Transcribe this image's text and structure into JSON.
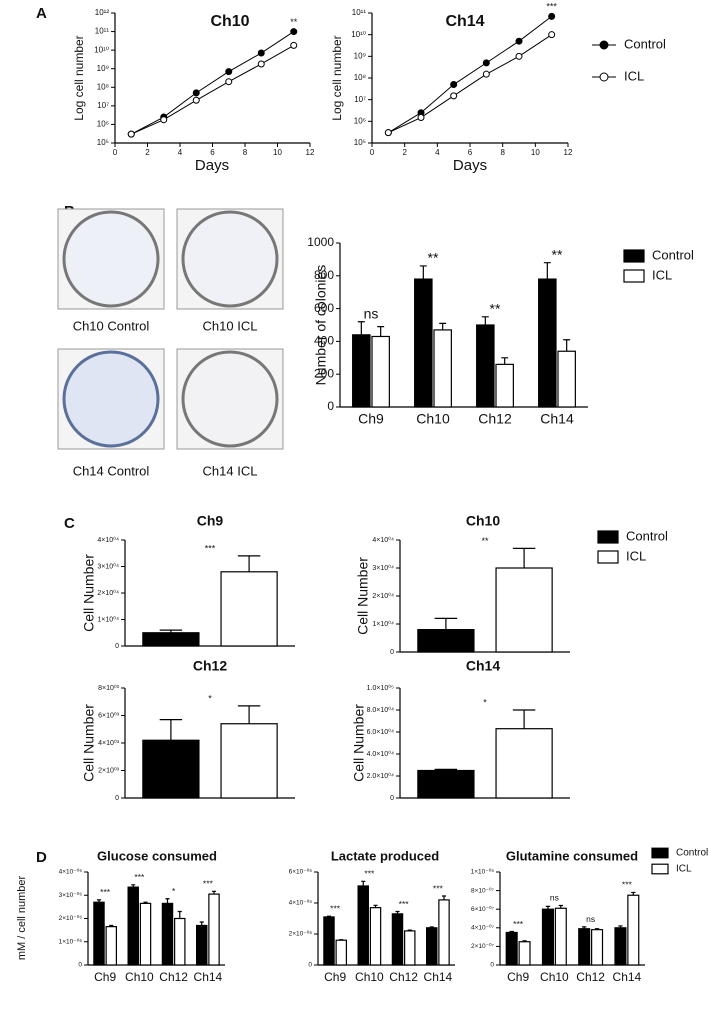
{
  "panel_labels": [
    "A",
    "B",
    "C",
    "D"
  ],
  "dish_labels": [
    "Ch10 Control",
    "Ch10 ICL",
    "Ch14 Control",
    "Ch14 ICL"
  ],
  "chart_data": [
    {
      "type": "line",
      "title": "Ch10",
      "x_label": "Days",
      "y_label": "Log cell number",
      "log_y": true,
      "x": [
        1,
        3,
        5,
        7,
        9,
        11
      ],
      "xlim": [
        0,
        12
      ],
      "xticks": [
        0,
        2,
        4,
        6,
        8,
        10,
        12
      ],
      "ylim": [
        100000,
        1000000000000
      ],
      "yticks": [
        {
          "value": 100000,
          "label": "10⁵"
        },
        {
          "value": 1000000,
          "label": "10⁶"
        },
        {
          "value": 10000000,
          "label": "10⁷"
        },
        {
          "value": 100000000,
          "label": "10⁸"
        },
        {
          "value": 1000000000,
          "label": "10⁹"
        },
        {
          "value": 10000000000,
          "label": "10¹⁰"
        },
        {
          "value": 100000000000,
          "label": "10¹¹"
        },
        {
          "value": 1000000000000,
          "label": "10¹²"
        }
      ],
      "series": [
        {
          "name": "Control",
          "color": "#000000",
          "values": [
            300000,
            2500000,
            50000000,
            700000000,
            7000000000,
            100000000000
          ]
        },
        {
          "name": "ICL",
          "color": "#ffffff",
          "values": [
            300000,
            1800000,
            20000000,
            200000000,
            1800000000,
            18000000000
          ]
        }
      ],
      "annotation": "**"
    },
    {
      "type": "line",
      "title": "Ch14",
      "x_label": "Days",
      "y_label": "Log cell number",
      "log_y": true,
      "x": [
        1,
        3,
        5,
        7,
        9,
        11
      ],
      "xlim": [
        0,
        12
      ],
      "xticks": [
        0,
        2,
        4,
        6,
        8,
        10,
        12
      ],
      "ylim": [
        100000,
        100000000000
      ],
      "yticks": [
        {
          "value": 100000,
          "label": "10⁵"
        },
        {
          "value": 1000000,
          "label": "10⁶"
        },
        {
          "value": 10000000,
          "label": "10⁷"
        },
        {
          "value": 100000000,
          "label": "10⁸"
        },
        {
          "value": 1000000000,
          "label": "10⁹"
        },
        {
          "value": 10000000000,
          "label": "10¹⁰"
        },
        {
          "value": 100000000000,
          "label": "10¹¹"
        }
      ],
      "series": [
        {
          "name": "Control",
          "color": "#000000",
          "values": [
            300000,
            2500000,
            50000000,
            500000000,
            5000000000,
            70000000000
          ]
        },
        {
          "name": "ICL",
          "color": "#ffffff",
          "values": [
            300000,
            1500000,
            15000000,
            150000000,
            1000000000,
            10000000000
          ]
        }
      ],
      "annotation": "***",
      "legend": "right"
    },
    {
      "type": "bar",
      "y_label": "Number of colonies",
      "categories": [
        "Ch9",
        "Ch10",
        "Ch12",
        "Ch14"
      ],
      "ylim": [
        0,
        1000
      ],
      "yticks": [
        0,
        200,
        400,
        600,
        800,
        1000
      ],
      "series": [
        {
          "name": "Control",
          "color": "#000000",
          "values": [
            440,
            780,
            500,
            780
          ],
          "errors": [
            80,
            80,
            50,
            100
          ]
        },
        {
          "name": "ICL",
          "color": "#ffffff",
          "values": [
            430,
            470,
            260,
            340
          ],
          "errors": [
            60,
            40,
            40,
            70
          ]
        }
      ],
      "annotations": [
        "ns",
        "**",
        "**",
        "**"
      ],
      "legend": "right"
    },
    {
      "type": "bar",
      "title": "Ch9",
      "y_label": "Cell Number",
      "ylim": [
        0,
        40000
      ],
      "yticks": [
        0,
        {
          "value": 10000,
          "label": "1×10⁰⁴"
        },
        {
          "value": 20000,
          "label": "2×10⁰⁴"
        },
        {
          "value": 30000,
          "label": "3×10⁰⁴"
        },
        {
          "value": 40000,
          "label": "4×10⁰⁴"
        }
      ],
      "series": [
        {
          "name": "Control",
          "color": "#000000",
          "values": [
            5000
          ],
          "errors": [
            1000
          ]
        },
        {
          "name": "ICL",
          "color": "#ffffff",
          "values": [
            28000
          ],
          "errors": [
            6000
          ]
        }
      ],
      "annotations": [
        "***"
      ],
      "legend": "right"
    },
    {
      "type": "bar",
      "title": "Ch10",
      "y_label": "Cell Number",
      "ylim": [
        0,
        40000
      ],
      "yticks": [
        0,
        {
          "value": 10000,
          "label": "1×10⁰⁴"
        },
        {
          "value": 20000,
          "label": "2×10⁰⁴"
        },
        {
          "value": 30000,
          "label": "3×10⁰⁴"
        },
        {
          "value": 40000,
          "label": "4×10⁰⁴"
        }
      ],
      "series": [
        {
          "name": "Control",
          "color": "#000000",
          "values": [
            8000
          ],
          "errors": [
            4000
          ]
        },
        {
          "name": "ICL",
          "color": "#ffffff",
          "values": [
            30000
          ],
          "errors": [
            7000
          ]
        }
      ],
      "annotations": [
        "**"
      ]
    },
    {
      "type": "bar",
      "title": "Ch12",
      "y_label": "Cell Number",
      "ylim": [
        0,
        8000
      ],
      "yticks": [
        0,
        {
          "value": 2000,
          "label": "2×10⁰³"
        },
        {
          "value": 4000,
          "label": "4×10⁰³"
        },
        {
          "value": 6000,
          "label": "6×10⁰³"
        },
        {
          "value": 8000,
          "label": "8×10⁰³"
        }
      ],
      "series": [
        {
          "name": "Control",
          "color": "#000000",
          "values": [
            4200
          ],
          "errors": [
            1500
          ]
        },
        {
          "name": "ICL",
          "color": "#ffffff",
          "values": [
            5400
          ],
          "errors": [
            1300
          ]
        }
      ],
      "annotations": [
        "*"
      ]
    },
    {
      "type": "bar",
      "title": "Ch14",
      "y_label": "Cell Number",
      "ylim": [
        0,
        100000
      ],
      "yticks": [
        0,
        {
          "value": 20000,
          "label": "2.0×10⁰⁴"
        },
        {
          "value": 40000,
          "label": "4.0×10⁰⁴"
        },
        {
          "value": 60000,
          "label": "6.0×10⁰⁴"
        },
        {
          "value": 80000,
          "label": "8.0×10⁰⁴"
        },
        {
          "value": 100000,
          "label": "1.0×10⁰⁵"
        }
      ],
      "series": [
        {
          "name": "Control",
          "color": "#000000",
          "values": [
            25000
          ],
          "errors": [
            1000
          ]
        },
        {
          "name": "ICL",
          "color": "#ffffff",
          "values": [
            63000
          ],
          "errors": [
            17000
          ]
        }
      ],
      "annotations": [
        "*"
      ]
    },
    {
      "type": "bar",
      "title": "Glucose consumed",
      "y_label": "mM / cell number",
      "categories": [
        "Ch9",
        "Ch10",
        "Ch12",
        "Ch14"
      ],
      "ylim": [
        0,
        4e-06
      ],
      "yticks": [
        0,
        {
          "value": 1e-06,
          "label": "1×10⁻⁰⁶"
        },
        {
          "value": 2e-06,
          "label": "2×10⁻⁰⁶"
        },
        {
          "value": 3e-06,
          "label": "3×10⁻⁰⁶"
        },
        {
          "value": 4e-06,
          "label": "4×10⁻⁰⁶"
        }
      ],
      "series": [
        {
          "name": "Control",
          "color": "#000000",
          "values": [
            2.7e-06,
            3.35e-06,
            2.65e-06,
            1.7e-06
          ],
          "errors": [
            1e-07,
            1e-07,
            2e-07,
            1.5e-07
          ]
        },
        {
          "name": "ICL",
          "color": "#ffffff",
          "values": [
            1.65e-06,
            2.65e-06,
            2e-06,
            3.05e-06
          ],
          "errors": [
            5e-08,
            5e-08,
            3e-07,
            1.2e-07
          ]
        }
      ],
      "annotations": [
        "***",
        "***",
        "*",
        "***"
      ]
    },
    {
      "type": "bar",
      "title": "Lactate produced",
      "categories": [
        "Ch9",
        "Ch10",
        "Ch12",
        "Ch14"
      ],
      "ylim": [
        0,
        6e-06
      ],
      "yticks": [
        0,
        {
          "value": 2e-06,
          "label": "2×10⁻⁰⁶"
        },
        {
          "value": 4e-06,
          "label": "4×10⁻⁰⁶"
        },
        {
          "value": 6e-06,
          "label": "6×10⁻⁰⁶"
        }
      ],
      "series": [
        {
          "name": "Control",
          "color": "#000000",
          "values": [
            3.1e-06,
            5.1e-06,
            3.3e-06,
            2.4e-06
          ],
          "errors": [
            5e-08,
            3e-07,
            1.5e-07,
            5e-08
          ]
        },
        {
          "name": "ICL",
          "color": "#ffffff",
          "values": [
            1.6e-06,
            3.7e-06,
            2.2e-06,
            4.2e-06
          ],
          "errors": [
            3e-08,
            1.5e-07,
            5e-08,
            2.5e-07
          ]
        }
      ],
      "annotations": [
        "***",
        "***",
        "***",
        "***"
      ]
    },
    {
      "type": "bar",
      "title": "Glutamine consumed",
      "categories": [
        "Ch9",
        "Ch10",
        "Ch12",
        "Ch14"
      ],
      "ylim": [
        0,
        1e-06
      ],
      "yticks": [
        0,
        {
          "value": 2e-07,
          "label": "2×10⁻⁰⁷"
        },
        {
          "value": 4e-07,
          "label": "4×10⁻⁰⁷"
        },
        {
          "value": 6e-07,
          "label": "6×10⁻⁰⁷"
        },
        {
          "value": 8e-07,
          "label": "8×10⁻⁰⁷"
        },
        {
          "value": 1e-06,
          "label": "1×10⁻⁰⁶"
        }
      ],
      "series": [
        {
          "name": "Control",
          "color": "#000000",
          "values": [
            3.5e-07,
            6e-07,
            3.9e-07,
            4e-07
          ],
          "errors": [
            1e-08,
            3e-08,
            2e-08,
            2e-08
          ]
        },
        {
          "name": "ICL",
          "color": "#ffffff",
          "values": [
            2.5e-07,
            6.1e-07,
            3.8e-07,
            7.5e-07
          ],
          "errors": [
            1e-08,
            3e-08,
            1e-08,
            3e-08
          ]
        }
      ],
      "annotations": [
        "***",
        "ns",
        "ns",
        "***"
      ],
      "legend": "right"
    }
  ]
}
